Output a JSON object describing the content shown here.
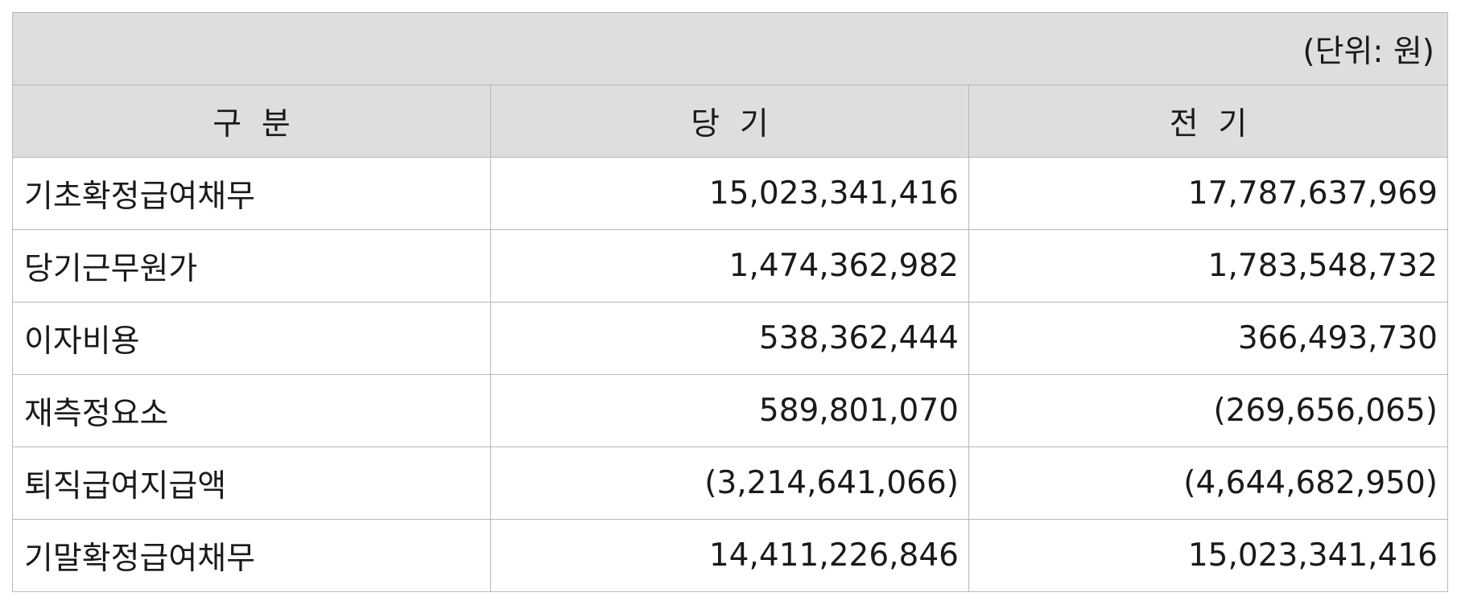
{
  "unit_note": "(단위: 원)",
  "columns": [
    "구  분",
    "당  기",
    "전  기"
  ],
  "rows": [
    {
      "label": "기초확정급여채무",
      "current": "15,023,341,416",
      "prior": "17,787,637,969"
    },
    {
      "label": "당기근무원가",
      "current": "1,474,362,982",
      "prior": "1,783,548,732"
    },
    {
      "label": "이자비용",
      "current": "538,362,444",
      "prior": "366,493,730"
    },
    {
      "label": "재측정요소",
      "current": "589,801,070",
      "prior": "(269,656,065)"
    },
    {
      "label": "퇴직급여지급액",
      "current": "(3,214,641,066)",
      "prior": "(4,644,682,950)"
    },
    {
      "label": "기말확정급여채무",
      "current": "14,411,226,846",
      "prior": "15,023,341,416"
    }
  ]
}
